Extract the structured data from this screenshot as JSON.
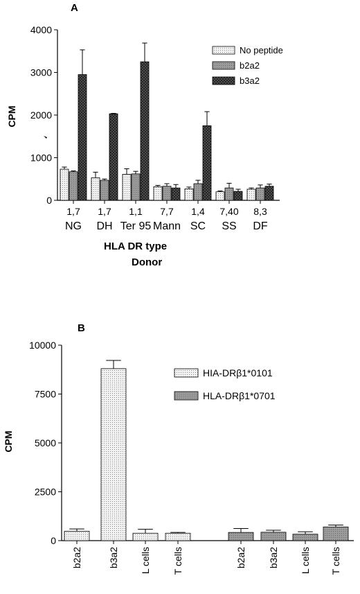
{
  "chart_data": [
    {
      "panel": "A",
      "type": "bar",
      "ylabel": "CPM",
      "xlabel": [
        "HLA DR type",
        "Donor"
      ],
      "ylim": [
        0,
        4000
      ],
      "yticks": [
        "0",
        "1000",
        "2000",
        "3000",
        "4000"
      ],
      "categories": [
        {
          "hla": "1,7",
          "donor": "NG"
        },
        {
          "hla": "1,7",
          "donor": "DH"
        },
        {
          "hla": "1,1",
          "donor": "Ter 95"
        },
        {
          "hla": "7,7",
          "donor": "Mann"
        },
        {
          "hla": "1,4",
          "donor": "SC"
        },
        {
          "hla": "7,40",
          "donor": "SS"
        },
        {
          "hla": "8,3",
          "donor": "DF"
        }
      ],
      "series": [
        {
          "name": "No peptide",
          "pattern": "light-dots",
          "values": [
            730,
            530,
            610,
            320,
            270,
            200,
            260
          ],
          "errors": [
            50,
            130,
            130,
            30,
            40,
            20,
            30
          ]
        },
        {
          "name": "b2a2",
          "pattern": "medium-gray",
          "values": [
            670,
            470,
            620,
            330,
            390,
            290,
            290
          ],
          "errors": [
            20,
            30,
            60,
            60,
            80,
            110,
            70
          ]
        },
        {
          "name": "b3a2",
          "pattern": "dark-crosshatch",
          "values": [
            2950,
            2030,
            3250,
            290,
            1750,
            210,
            330
          ],
          "errors": [
            580,
            10,
            440,
            80,
            330,
            50,
            50
          ]
        }
      ],
      "legend_position": "top-right"
    },
    {
      "panel": "B",
      "type": "bar",
      "ylabel": "CPM",
      "ylim": [
        0,
        10000
      ],
      "yticks": [
        "0",
        "2500",
        "5000",
        "7500",
        "10000"
      ],
      "groups": [
        {
          "series": "HIA-DRβ1*0101",
          "pattern": "light-dots",
          "categories": [
            "b2a2",
            "b3a2",
            "L cells",
            "T cells"
          ],
          "values": [
            480,
            8800,
            380,
            380
          ],
          "errors": [
            120,
            420,
            200,
            40
          ]
        },
        {
          "series": "HLA-DRβ1*0701",
          "pattern": "medium-gray",
          "categories": [
            "b2a2",
            "b3a2",
            "L cells",
            "T cells"
          ],
          "values": [
            420,
            430,
            330,
            700
          ],
          "errors": [
            200,
            100,
            120,
            100
          ]
        }
      ],
      "legend": [
        "HIA-DRβ1*0101",
        "HLA-DRβ1*0701"
      ],
      "legend_position": "top-right"
    }
  ]
}
